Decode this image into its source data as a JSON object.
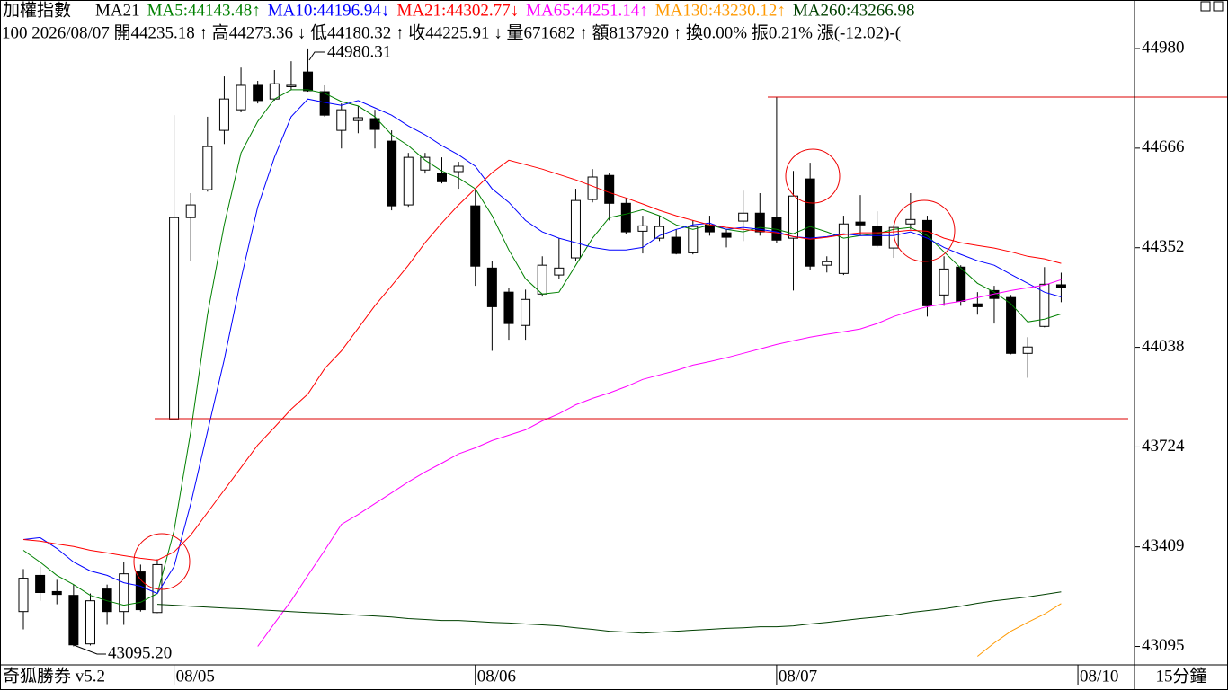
{
  "chart_data": {
    "type": "candlestick",
    "title": "加權指數",
    "indicator": "MA21",
    "info": "100 2026/08/07 開44235.18 ↑ 高44273.36 ↓ 低44180.32 ↑ 收44225.91 ↓ 量671682 ↑ 額8137920 ↑ 換0.00% 振0.21% 漲(-12.02)-(",
    "footer": "奇狐勝券 v5.2",
    "period": "15分鐘",
    "annotations": [
      "44980.31",
      "43095.20"
    ],
    "categories": [
      null,
      null,
      null,
      null,
      null,
      null,
      null,
      null,
      null,
      "08/05",
      null,
      null,
      null,
      null,
      null,
      null,
      null,
      null,
      null,
      null,
      null,
      null,
      null,
      null,
      null,
      null,
      null,
      "08/06",
      null,
      null,
      null,
      null,
      null,
      null,
      null,
      null,
      null,
      null,
      null,
      null,
      null,
      null,
      null,
      null,
      null,
      "08/07",
      null,
      null,
      null,
      null,
      null,
      null,
      null,
      null,
      null,
      null,
      null,
      null,
      null,
      null,
      null,
      null,
      null,
      "08/10"
    ],
    "candles": {
      "up_color": "#ffffff",
      "down_color": "#000000",
      "open": [
        43205,
        43319,
        43268,
        43256,
        43103,
        43276,
        43205,
        43330,
        43202,
        43812,
        44447,
        44535,
        44722,
        44787,
        44864,
        44821,
        44861,
        44906,
        44844,
        44722,
        44753,
        44759,
        44688,
        44487,
        44597,
        44586,
        44592,
        44484,
        44288,
        44212,
        44107,
        44206,
        44266,
        44320,
        44504,
        44580,
        44492,
        44404,
        44382,
        44385,
        44336,
        44424,
        44399,
        44436,
        44461,
        44447,
        44382,
        44569,
        44297,
        44271,
        44433,
        44419,
        44351,
        44427,
        44438,
        44203,
        44291,
        44175,
        44217,
        44195,
        44019,
        44104,
        44235.18,
        null
      ],
      "high": [
        43339,
        43347,
        43305,
        43290,
        43262,
        43290,
        43361,
        43353,
        43370,
        44770,
        44524,
        44765,
        44892,
        44920,
        44878,
        44912,
        44940,
        44980.31,
        44864,
        44807,
        44799,
        44787,
        44722,
        44651,
        44651,
        44637,
        44623,
        44538,
        44311,
        44226,
        44220,
        44325,
        44382,
        44538,
        44600,
        44589,
        44509,
        44453,
        44453,
        44410,
        44438,
        44453,
        44410,
        44532,
        44524,
        44827,
        44594,
        44620,
        44325,
        44453,
        44518,
        44467,
        44424,
        44524,
        44453,
        44325,
        44297,
        44212,
        44232,
        44203,
        44070,
        44291,
        44273.36,
        null
      ],
      "low": [
        43149,
        43239,
        43228,
        43095.2,
        43098,
        43163,
        43163,
        43205,
        43200,
        43812,
        44311,
        44529,
        44679,
        44779,
        44807,
        44816,
        44850,
        44844,
        44765,
        44665,
        44713,
        44665,
        44470,
        44481,
        44586,
        44555,
        44538,
        44232,
        44027,
        44062,
        44062,
        44198,
        44254,
        44311,
        44495,
        44438,
        44396,
        44334,
        44373,
        44331,
        44331,
        44390,
        44353,
        44373,
        44390,
        44368,
        44217,
        44283,
        44274,
        44266,
        44390,
        44353,
        44320,
        44410,
        44135,
        44169,
        44169,
        44141,
        44113,
        44016,
        43942,
        44101,
        44180.32,
        null
      ],
      "close": [
        43310,
        43265,
        43259,
        43100,
        43239,
        43205,
        43324,
        43211,
        43353,
        44447,
        44487,
        44671,
        44821,
        44864,
        44816,
        44869,
        44864,
        44847,
        44770,
        44787,
        44762,
        44725,
        44484,
        44637,
        44637,
        44560,
        44609,
        44294,
        44166,
        44113,
        44189,
        44297,
        44288,
        44501,
        44575,
        44492,
        44402,
        44421,
        44419,
        44334,
        44419,
        44402,
        44385,
        44461,
        44402,
        44376,
        44515,
        44294,
        44308,
        44427,
        44424,
        44359,
        44416,
        44441,
        44169,
        44285,
        44183,
        44166,
        44192,
        44019,
        44039,
        44237,
        44225.91,
        null
      ]
    },
    "series": [
      {
        "name": "MA5:44143.48↑",
        "color": "#008000",
        "values": [
          43398,
          43361,
          43319,
          43290,
          43256,
          43239,
          43225,
          43234,
          43262,
          43460,
          43772,
          44141,
          44424,
          44651,
          44750,
          44821,
          44850,
          44850,
          44839,
          44813,
          44799,
          44765,
          44708,
          44674,
          44628,
          44594,
          44572,
          44538,
          44453,
          44345,
          44254,
          44206,
          44212,
          44297,
          44382,
          44447,
          44458,
          44472,
          44453,
          44424,
          44410,
          44424,
          44410,
          44402,
          44416,
          44410,
          44396,
          44419,
          44402,
          44382,
          44390,
          44396,
          44410,
          44416,
          44390,
          44339,
          44288,
          44240,
          44212,
          44175,
          44118,
          44127,
          44143.48,
          null
        ]
      },
      {
        "name": "MA10:44196.94↓",
        "color": "#0000ff",
        "values": [
          43432,
          43438,
          43404,
          43361,
          43333,
          43319,
          43296,
          43285,
          43262,
          43347,
          43545,
          43772,
          43999,
          44254,
          44481,
          44637,
          44765,
          44821,
          44810,
          44801,
          44816,
          44793,
          44770,
          44736,
          44708,
          44674,
          44645,
          44609,
          44538,
          44495,
          44438,
          44402,
          44382,
          44368,
          44353,
          44345,
          44345,
          44353,
          44390,
          44410,
          44424,
          44430,
          44410,
          44416,
          44410,
          44402,
          44387,
          44382,
          44387,
          44396,
          44390,
          44390,
          44390,
          44402,
          44382,
          44353,
          44331,
          44311,
          44297,
          44268,
          44240,
          44212,
          44196.94,
          null
        ]
      },
      {
        "name": "MA21:44302.77↓",
        "color": "#ff0000",
        "values": [
          43432,
          43427,
          43418,
          43410,
          43398,
          43390,
          43381,
          43373,
          43367,
          43393,
          43446,
          43517,
          43588,
          43659,
          43730,
          43786,
          43843,
          43891,
          43971,
          44027,
          44098,
          44169,
          44232,
          44297,
          44368,
          44430,
          44487,
          44538,
          44589,
          44628,
          44614,
          44600,
          44583,
          44566,
          44546,
          44526,
          44509,
          44490,
          44470,
          44453,
          44438,
          44424,
          44416,
          44410,
          44404,
          44399,
          44387,
          44379,
          44385,
          44393,
          44399,
          44399,
          44402,
          44407,
          44404,
          44382,
          44368,
          44359,
          44351,
          44339,
          44325,
          44317,
          44302.77,
          null
        ]
      },
      {
        "name": "MA65:44251.14↑",
        "color": "#ff00ff",
        "values": [
          null,
          null,
          null,
          null,
          null,
          null,
          null,
          null,
          null,
          null,
          null,
          null,
          null,
          null,
          43095,
          43168,
          43239,
          43319,
          43398,
          43480,
          43511,
          43545,
          43579,
          43614,
          43645,
          43673,
          43702,
          43721,
          43744,
          43761,
          43778,
          43806,
          43829,
          43857,
          43877,
          43894,
          43914,
          43937,
          43951,
          43965,
          43982,
          43993,
          44005,
          44019,
          44033,
          44047,
          44059,
          44070,
          44079,
          44087,
          44096,
          44113,
          44135,
          44152,
          44166,
          44175,
          44183,
          44195,
          44206,
          44217,
          44226,
          44234,
          44251.14,
          null
        ]
      },
      {
        "name": "MA130:43230.12↑",
        "color": "#ff9900",
        "values": [
          null,
          null,
          null,
          null,
          null,
          null,
          null,
          null,
          null,
          null,
          null,
          null,
          null,
          null,
          null,
          null,
          null,
          null,
          null,
          null,
          null,
          null,
          null,
          null,
          null,
          null,
          null,
          null,
          null,
          null,
          null,
          null,
          null,
          null,
          null,
          null,
          null,
          null,
          null,
          null,
          null,
          null,
          null,
          null,
          null,
          null,
          null,
          null,
          null,
          null,
          null,
          null,
          null,
          null,
          null,
          null,
          null,
          43064,
          43106,
          43143,
          43171,
          43197,
          43230.12,
          null
        ]
      },
      {
        "name": "MA260:43266.98",
        "color": "#004000",
        "values": [
          null,
          null,
          null,
          null,
          null,
          null,
          null,
          null,
          43228,
          43225,
          43222,
          43219,
          43216,
          43214,
          43211,
          43208,
          43205,
          43202,
          43200,
          43197,
          43194,
          43191,
          43188,
          43183,
          43180,
          43177,
          43177,
          43174,
          43171,
          43169,
          43166,
          43163,
          43160,
          43154,
          43149,
          43143,
          43140,
          43137,
          43140,
          43143,
          43146,
          43149,
          43152,
          43154,
          43157,
          43157,
          43160,
          43166,
          43171,
          43177,
          43183,
          43188,
          43194,
          43202,
          43208,
          43214,
          43222,
          43231,
          43239,
          43245,
          43251,
          43259,
          43266.98,
          null
        ]
      }
    ],
    "ylim": [
      43037,
      45133
    ],
    "yticks": [
      44980,
      44666,
      44352,
      44038,
      43724,
      43409,
      43095
    ]
  }
}
